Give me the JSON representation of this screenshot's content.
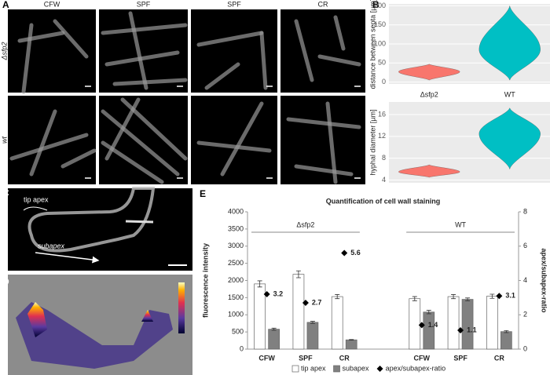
{
  "panel_labels": [
    "A",
    "B",
    "C",
    "D",
    "E"
  ],
  "panel_a": {
    "columns": [
      "CFW",
      "SPF",
      "SPF",
      "CR"
    ],
    "rows": [
      "Δsfp2",
      "wt"
    ]
  },
  "panel_c": {
    "labels": [
      "tip apex",
      "subapex"
    ]
  },
  "chart_data": [
    {
      "type": "violin",
      "ylabel": "distance between septa [µm]",
      "categories": [
        "Δsfp2",
        "WT"
      ],
      "ylim": [
        -5,
        205
      ],
      "yticks": [
        0,
        50,
        100,
        150,
        200
      ],
      "series": [
        {
          "color": "#f8766d",
          "min": 5,
          "mode": 27,
          "max": 47
        },
        {
          "color": "#00bfc4",
          "min": 5,
          "mode": 85,
          "max": 200
        }
      ]
    },
    {
      "type": "violin",
      "ylabel": "hyphal diameter [µm]",
      "ylim": [
        3.5,
        18.3
      ],
      "yticks": [
        4,
        8,
        12,
        16
      ],
      "series": [
        {
          "color": "#f8766d",
          "min": 4.5,
          "mode": 5.5,
          "max": 6.8
        },
        {
          "color": "#00bfc4",
          "min": 6,
          "mode": 12.5,
          "max": 17.2
        }
      ]
    },
    {
      "type": "bar",
      "title": "Quantification of cell wall staining",
      "ylabel": "fluorescence intensity",
      "y2label": "apex/subapex-ratio",
      "groups": [
        {
          "label": "Δsfp2",
          "categories": [
            "CFW",
            "SPF",
            "CR"
          ]
        },
        {
          "label": "WT",
          "categories": [
            "CFW",
            "SPF",
            "CR"
          ]
        }
      ],
      "ylim": [
        0,
        4000
      ],
      "yticks": [
        0,
        500,
        1000,
        1500,
        2000,
        2500,
        3000,
        3500,
        4000
      ],
      "y2lim": [
        0,
        8
      ],
      "y2ticks": [
        0,
        2,
        4,
        6,
        8
      ],
      "series": [
        {
          "name": "tip apex",
          "color": "#ffffff",
          "values": [
            1900,
            2180,
            1530,
            1470,
            1530,
            1540
          ],
          "errors": [
            90,
            100,
            60,
            60,
            60,
            60
          ]
        },
        {
          "name": "subapex",
          "color": "#808080",
          "values": [
            580,
            780,
            270,
            1080,
            1450,
            510
          ],
          "errors": [
            30,
            30,
            10,
            50,
            40,
            30
          ]
        },
        {
          "name": "apex/subapex-ratio",
          "color": "#000000",
          "marker": "diamond",
          "axis": "y2",
          "values": [
            3.2,
            2.7,
            5.6,
            1.4,
            1.1,
            3.1
          ]
        }
      ]
    }
  ]
}
